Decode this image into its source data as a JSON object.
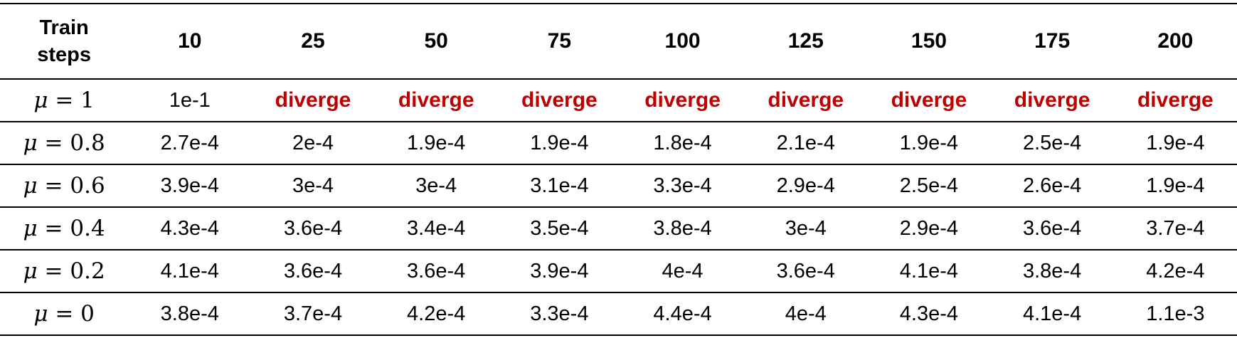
{
  "table": {
    "header": {
      "corner_line1": "Train",
      "corner_line2": "steps",
      "columns": [
        "10",
        "25",
        "50",
        "75",
        "100",
        "125",
        "150",
        "175",
        "200"
      ]
    },
    "rows": [
      {
        "label_symbol": "μ",
        "label_rest": " = 1",
        "cells": [
          "1e-1",
          "diverge",
          "diverge",
          "diverge",
          "diverge",
          "diverge",
          "diverge",
          "diverge",
          "diverge"
        ]
      },
      {
        "label_symbol": "μ",
        "label_rest": " = 0.8",
        "cells": [
          "2.7e-4",
          "2e-4",
          "1.9e-4",
          "1.9e-4",
          "1.8e-4",
          "2.1e-4",
          "1.9e-4",
          "2.5e-4",
          "1.9e-4"
        ]
      },
      {
        "label_symbol": "μ",
        "label_rest": " = 0.6",
        "cells": [
          "3.9e-4",
          "3e-4",
          "3e-4",
          "3.1e-4",
          "3.3e-4",
          "2.9e-4",
          "2.5e-4",
          "2.6e-4",
          "1.9e-4"
        ]
      },
      {
        "label_symbol": "μ",
        "label_rest": " = 0.4",
        "cells": [
          "4.3e-4",
          "3.6e-4",
          "3.4e-4",
          "3.5e-4",
          "3.8e-4",
          "3e-4",
          "2.9e-4",
          "3.6e-4",
          "3.7e-4"
        ]
      },
      {
        "label_symbol": "μ",
        "label_rest": " = 0.2",
        "cells": [
          "4.1e-4",
          "3.6e-4",
          "3.6e-4",
          "3.9e-4",
          "4e-4",
          "3.6e-4",
          "4.1e-4",
          "3.8e-4",
          "4.2e-4"
        ]
      },
      {
        "label_symbol": "μ",
        "label_rest": " = 0",
        "cells": [
          "3.8e-4",
          "3.7e-4",
          "4.2e-4",
          "3.3e-4",
          "4.4e-4",
          "4e-4",
          "4.3e-4",
          "4.1e-4",
          "1.1e-3"
        ]
      }
    ],
    "colors": {
      "diverge": "#c00000",
      "text": "#000000",
      "rule": "#000000"
    }
  }
}
